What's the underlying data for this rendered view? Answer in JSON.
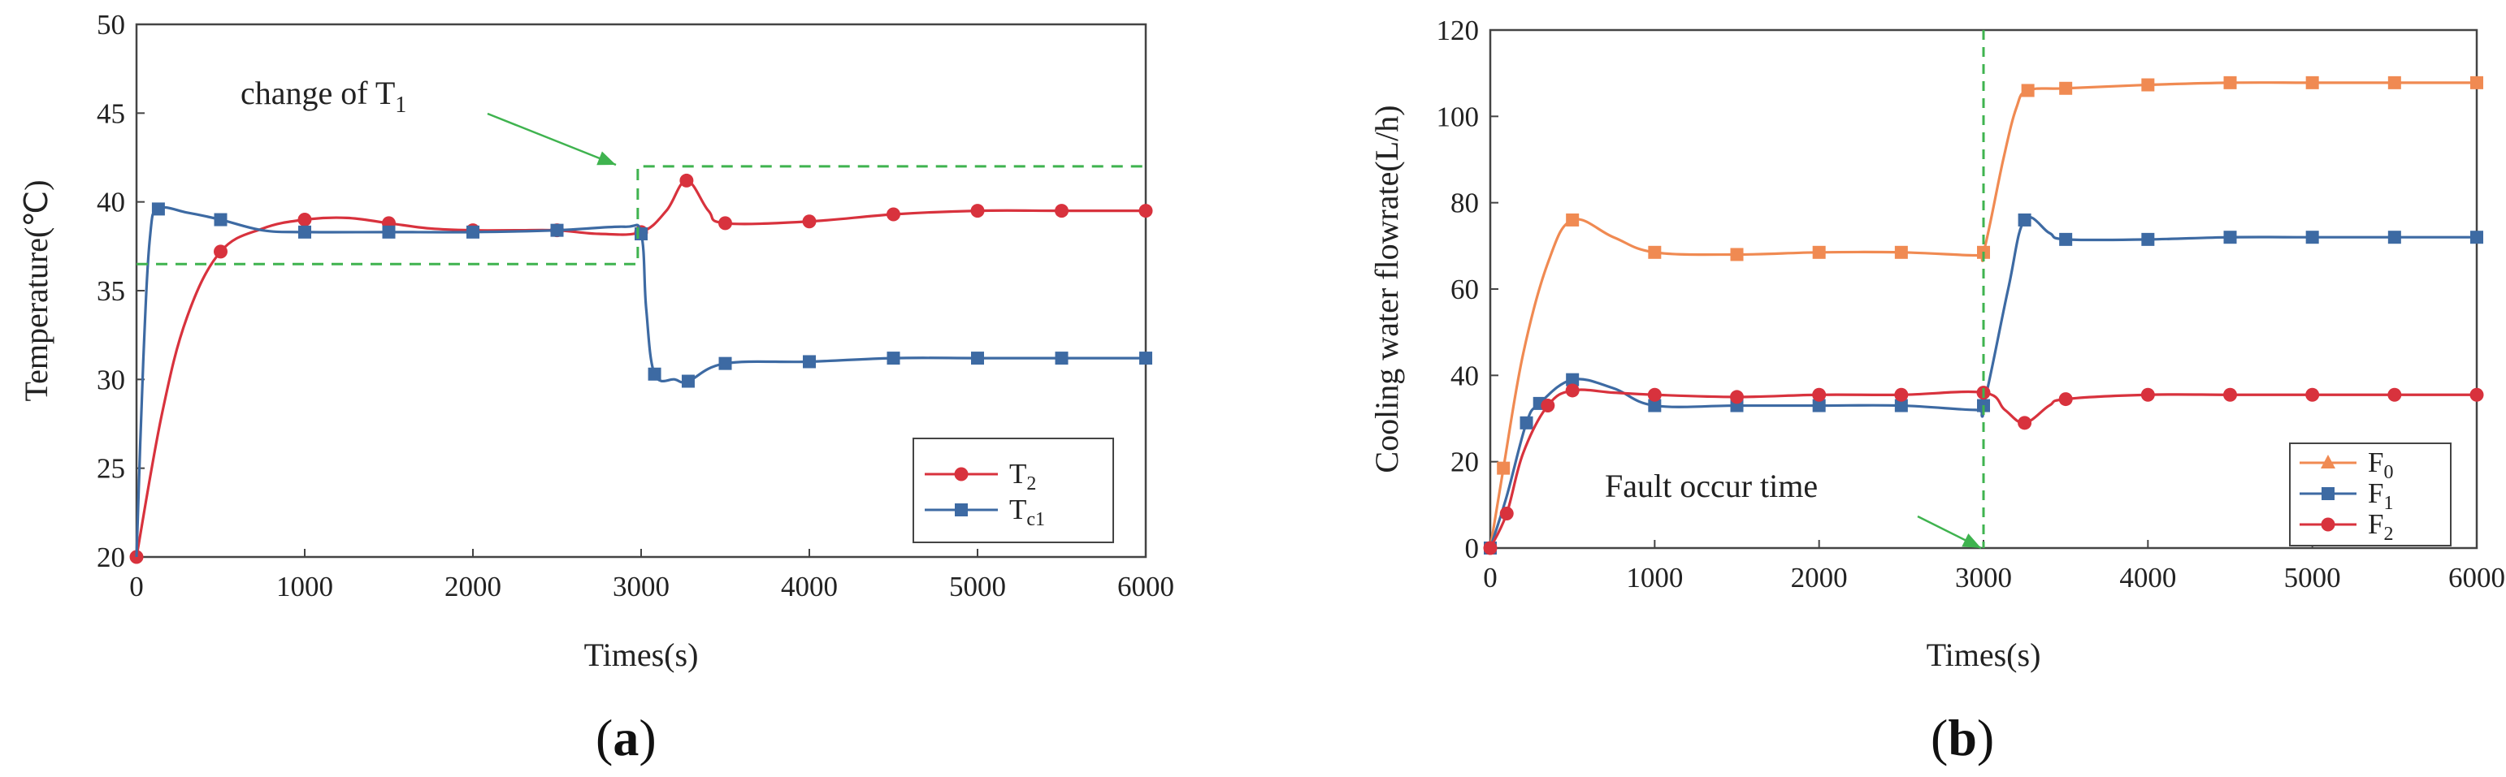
{
  "colors": {
    "red": "#d8323d",
    "blue": "#3d6aa3",
    "orange": "#f08a52",
    "green": "#3fb34f",
    "frame": "#444444"
  },
  "chart_data": [
    {
      "type": "line",
      "panel": "(a)",
      "panel_parts": [
        "(",
        "a",
        ")"
      ],
      "xlabel": "Times(s)",
      "ylabel": "Temperature(℃)",
      "xlim": [
        0,
        6000
      ],
      "ylim": [
        20,
        50
      ],
      "xticks": [
        0,
        1000,
        2000,
        3000,
        4000,
        5000,
        6000
      ],
      "yticks": [
        20,
        25,
        30,
        35,
        40,
        45,
        50
      ],
      "annotation": {
        "text": "change of T",
        "sub": "1"
      },
      "highlight_box": {
        "x0": 0,
        "x1": 2980,
        "y_low": 36.5,
        "y_high": 42.0,
        "x_end": 6000
      },
      "series": [
        {
          "name": "T",
          "sub": "2",
          "color_key": "red",
          "marker": "circle",
          "x": [
            0,
            150,
            300,
            500,
            750,
            1000,
            1250,
            1500,
            1750,
            2000,
            2250,
            2500,
            2750,
            3000,
            3150,
            3270,
            3400,
            3500,
            4000,
            4500,
            5000,
            5500,
            6000
          ],
          "y": [
            20.0,
            28.0,
            33.5,
            37.2,
            38.5,
            39.0,
            39.1,
            38.8,
            38.5,
            38.4,
            38.4,
            38.4,
            38.2,
            38.3,
            39.5,
            41.2,
            39.5,
            38.8,
            38.9,
            39.3,
            39.5,
            39.5,
            39.5
          ],
          "marker_x": [
            0,
            500,
            1000,
            1500,
            2000,
            2500,
            3000,
            3270,
            3500,
            4000,
            4500,
            5000,
            5500,
            6000
          ],
          "marker_y": [
            20.0,
            37.2,
            39.0,
            38.8,
            38.4,
            38.4,
            38.3,
            41.2,
            38.8,
            38.9,
            39.3,
            39.5,
            39.5,
            39.5
          ]
        },
        {
          "name": "T",
          "sub": "c1",
          "color_key": "blue",
          "marker": "square",
          "x": [
            0,
            40,
            80,
            130,
            300,
            500,
            750,
            1000,
            1500,
            2000,
            2500,
            2900,
            3000,
            3030,
            3080,
            3200,
            3280,
            3500,
            4000,
            4500,
            5000,
            5500,
            6000
          ],
          "y": [
            20.0,
            31.0,
            38.0,
            39.6,
            39.4,
            39.0,
            38.4,
            38.3,
            38.3,
            38.3,
            38.4,
            38.6,
            38.2,
            34.0,
            30.3,
            30.0,
            29.9,
            30.9,
            31.0,
            31.2,
            31.2,
            31.2,
            31.2
          ],
          "marker_x": [
            130,
            500,
            1000,
            1500,
            2000,
            2500,
            3000,
            3080,
            3280,
            3500,
            4000,
            4500,
            5000,
            5500,
            6000
          ],
          "marker_y": [
            39.6,
            39.0,
            38.3,
            38.3,
            38.3,
            38.4,
            38.2,
            30.3,
            29.9,
            30.9,
            31.0,
            31.2,
            31.2,
            31.2,
            31.2
          ]
        }
      ]
    },
    {
      "type": "line",
      "panel": "(b)",
      "panel_parts": [
        "(",
        "b",
        ")"
      ],
      "xlabel": "Times(s)",
      "ylabel": "Cooling water flowrate(L/h)",
      "xlim": [
        0,
        6000
      ],
      "ylim": [
        0,
        120
      ],
      "xticks": [
        0,
        1000,
        2000,
        3000,
        4000,
        5000,
        6000
      ],
      "yticks": [
        0,
        20,
        40,
        60,
        80,
        100,
        120
      ],
      "annotation": {
        "text": "Fault occur time"
      },
      "vline_x": 3000,
      "series": [
        {
          "name": "F",
          "sub": "0",
          "color_key": "orange",
          "marker": "square",
          "legend_marker": "triangle",
          "x": [
            0,
            80,
            200,
            350,
            500,
            750,
            1000,
            1500,
            2000,
            2500,
            2950,
            3000,
            3120,
            3200,
            3270,
            3500,
            4000,
            4500,
            5000,
            5500,
            6000
          ],
          "y": [
            0,
            18.5,
            45,
            66,
            76,
            72,
            68.5,
            68,
            68.5,
            68.5,
            67.8,
            68.5,
            90,
            102,
            106,
            106.5,
            107.3,
            107.8,
            107.8,
            107.8,
            107.8
          ],
          "marker_x": [
            0,
            80,
            500,
            1000,
            1500,
            2000,
            2500,
            3000,
            3270,
            3500,
            4000,
            4500,
            5000,
            5500,
            6000
          ],
          "marker_y": [
            0,
            18.5,
            76,
            68.5,
            68,
            68.5,
            68.5,
            68.5,
            106,
            106.5,
            107.3,
            107.8,
            107.8,
            107.8,
            107.8
          ]
        },
        {
          "name": "F",
          "sub": "1",
          "color_key": "blue",
          "marker": "square",
          "x": [
            0,
            100,
            220,
            300,
            500,
            750,
            1000,
            1500,
            2000,
            2500,
            2950,
            3000,
            3150,
            3250,
            3400,
            3500,
            4000,
            4500,
            5000,
            5500,
            6000
          ],
          "y": [
            0,
            12,
            29,
            33.5,
            39,
            37,
            33,
            33,
            33,
            33,
            32,
            33,
            60,
            76,
            73,
            71.5,
            71.5,
            72,
            72,
            72,
            72
          ],
          "marker_x": [
            0,
            220,
            300,
            500,
            1000,
            1500,
            2000,
            2500,
            3000,
            3250,
            3500,
            4000,
            4500,
            5000,
            5500,
            6000
          ],
          "marker_y": [
            0,
            29,
            33.5,
            39,
            33,
            33,
            33,
            33,
            33,
            76,
            71.5,
            71.5,
            72,
            72,
            72,
            72
          ]
        },
        {
          "name": "F",
          "sub": "2",
          "color_key": "red",
          "marker": "circle",
          "x": [
            0,
            100,
            200,
            350,
            500,
            750,
            1000,
            1500,
            2000,
            2500,
            3000,
            3130,
            3250,
            3400,
            3500,
            4000,
            4500,
            5000,
            5500,
            6000
          ],
          "y": [
            0,
            8,
            22,
            33,
            36.5,
            36,
            35.5,
            35,
            35.5,
            35.5,
            36,
            32,
            29,
            33,
            34.5,
            35.5,
            35.5,
            35.5,
            35.5,
            35.5
          ],
          "marker_x": [
            0,
            100,
            350,
            500,
            1000,
            1500,
            2000,
            2500,
            3000,
            3250,
            3500,
            4000,
            4500,
            5000,
            5500,
            6000
          ],
          "marker_y": [
            0,
            8,
            33,
            36.5,
            35.5,
            35,
            35.5,
            35.5,
            36,
            29,
            34.5,
            35.5,
            35.5,
            35.5,
            35.5,
            35.5
          ]
        }
      ]
    }
  ]
}
